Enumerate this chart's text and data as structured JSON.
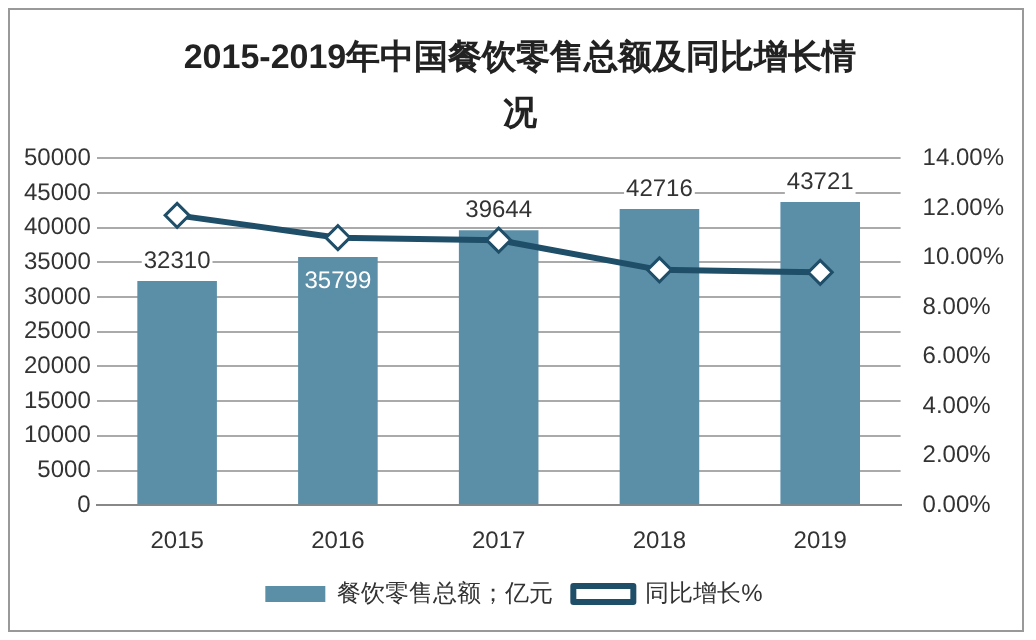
{
  "chart_data": {
    "type": "bar",
    "title": "2015-2019年中国餐饮零售总额及同比增长情况",
    "categories": [
      "2015",
      "2016",
      "2017",
      "2018",
      "2019"
    ],
    "series": [
      {
        "name": "餐饮零售总额；亿元",
        "color": "#5b8fa8",
        "values": [
          32310,
          35799,
          39644,
          42716,
          43721
        ],
        "value_labels": [
          "32310",
          "35799",
          "39644",
          "42716",
          "43721"
        ]
      },
      {
        "name": "同比增长%",
        "type": "line",
        "axis": "y2",
        "color": "#1f4e69",
        "values": [
          11.7,
          10.8,
          10.7,
          9.5,
          9.4
        ]
      }
    ],
    "ylim": [
      0,
      50000
    ],
    "yticks": [
      0,
      5000,
      10000,
      15000,
      20000,
      25000,
      30000,
      35000,
      40000,
      45000,
      50000
    ],
    "y2lim": [
      0,
      14
    ],
    "y2ticks": [
      {
        "value": 0,
        "label": "0.00%"
      },
      {
        "value": 2,
        "label": "2.00%"
      },
      {
        "value": 4,
        "label": "4.00%"
      },
      {
        "value": 6,
        "label": "6.00%"
      },
      {
        "value": 8,
        "label": "8.00%"
      },
      {
        "value": 10,
        "label": "10.00%"
      },
      {
        "value": 12,
        "label": "12.00%"
      },
      {
        "value": 14,
        "label": "14.00%"
      }
    ],
    "grid": "y",
    "legend": "bottom",
    "marker": "diamond"
  }
}
